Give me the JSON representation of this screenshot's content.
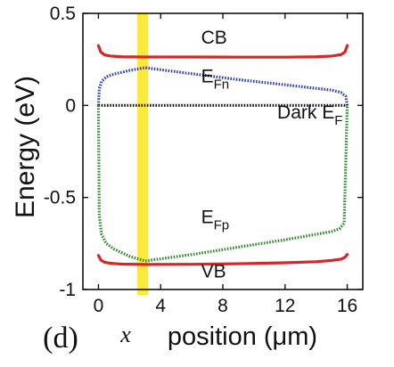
{
  "chart_data": {
    "type": "line",
    "ylabel": "Energy (eV)",
    "xlabel_var": "x",
    "xlabel": "position (μm)",
    "panel_label": "(d)",
    "xlim": [
      -1,
      17
    ],
    "ylim": [
      -1,
      0.5
    ],
    "x_ticks": [
      0,
      4,
      8,
      12,
      16
    ],
    "y_ticks": [
      {
        "value": 0.5,
        "label": "0.5"
      },
      {
        "value": 0,
        "label": "0"
      },
      {
        "value": -0.5,
        "label": "-0.5"
      },
      {
        "value": -1,
        "label": "-1"
      }
    ],
    "grid": false,
    "highlight_band": {
      "x_from": 2.5,
      "x_to": 3.2,
      "color": "#fde93a"
    },
    "series": [
      {
        "name": "CB",
        "style": "solid",
        "color": "#d7262a",
        "x": [
          0,
          0.15,
          0.4,
          0.8,
          1.5,
          3,
          6,
          9,
          12,
          14,
          15,
          15.6,
          15.85,
          16
        ],
        "y": [
          0.325,
          0.29,
          0.274,
          0.268,
          0.264,
          0.263,
          0.263,
          0.262,
          0.262,
          0.264,
          0.268,
          0.276,
          0.29,
          0.325
        ]
      },
      {
        "name": "EFn",
        "label_main": "E",
        "label_sub": "Fn",
        "style": "dotted",
        "color": "#2f3fb0",
        "x": [
          0,
          0.05,
          0.2,
          0.5,
          1,
          2,
          3,
          6,
          9,
          12,
          15,
          15.6,
          15.9,
          16
        ],
        "y": [
          0,
          0.09,
          0.13,
          0.155,
          0.17,
          0.19,
          0.205,
          0.172,
          0.14,
          0.112,
          0.083,
          0.07,
          0.05,
          0
        ]
      },
      {
        "name": "Dark EF",
        "label_main": "Dark E",
        "label_sub": "F",
        "style": "dotted",
        "color": "#111111",
        "x": [
          0,
          16
        ],
        "y": [
          0,
          0
        ]
      },
      {
        "name": "EFp",
        "label_main": "E",
        "label_sub": "Fp",
        "style": "dotted",
        "color": "#2e8b2e",
        "x": [
          0,
          0.05,
          0.2,
          0.5,
          1,
          2,
          3,
          6,
          9,
          12,
          15,
          15.5,
          15.8,
          16
        ],
        "y": [
          0,
          -0.6,
          -0.7,
          -0.75,
          -0.78,
          -0.82,
          -0.845,
          -0.81,
          -0.77,
          -0.73,
          -0.685,
          -0.67,
          -0.64,
          0
        ]
      },
      {
        "name": "VB",
        "style": "solid",
        "color": "#d7262a",
        "x": [
          0,
          0.15,
          0.4,
          0.8,
          1.5,
          3,
          6,
          9,
          12,
          14,
          15,
          15.6,
          15.85,
          16
        ],
        "y": [
          -0.815,
          -0.84,
          -0.852,
          -0.858,
          -0.862,
          -0.864,
          -0.863,
          -0.86,
          -0.855,
          -0.849,
          -0.842,
          -0.835,
          -0.825,
          -0.81
        ]
      }
    ],
    "curve_labels": [
      {
        "series": "CB",
        "text": "CB",
        "x": 6.6,
        "y": 0.335
      },
      {
        "series": "EFn",
        "text": "E",
        "sub": "Fn",
        "x": 6.6,
        "y": 0.125
      },
      {
        "series": "Dark EF",
        "text": "Dark E",
        "sub": "F",
        "x": 11.5,
        "y": -0.07
      },
      {
        "series": "EFp",
        "text": "E",
        "sub": "Fp",
        "x": 6.6,
        "y": -0.64
      },
      {
        "series": "VB",
        "text": "VB",
        "x": 6.6,
        "y": -0.935
      }
    ]
  }
}
